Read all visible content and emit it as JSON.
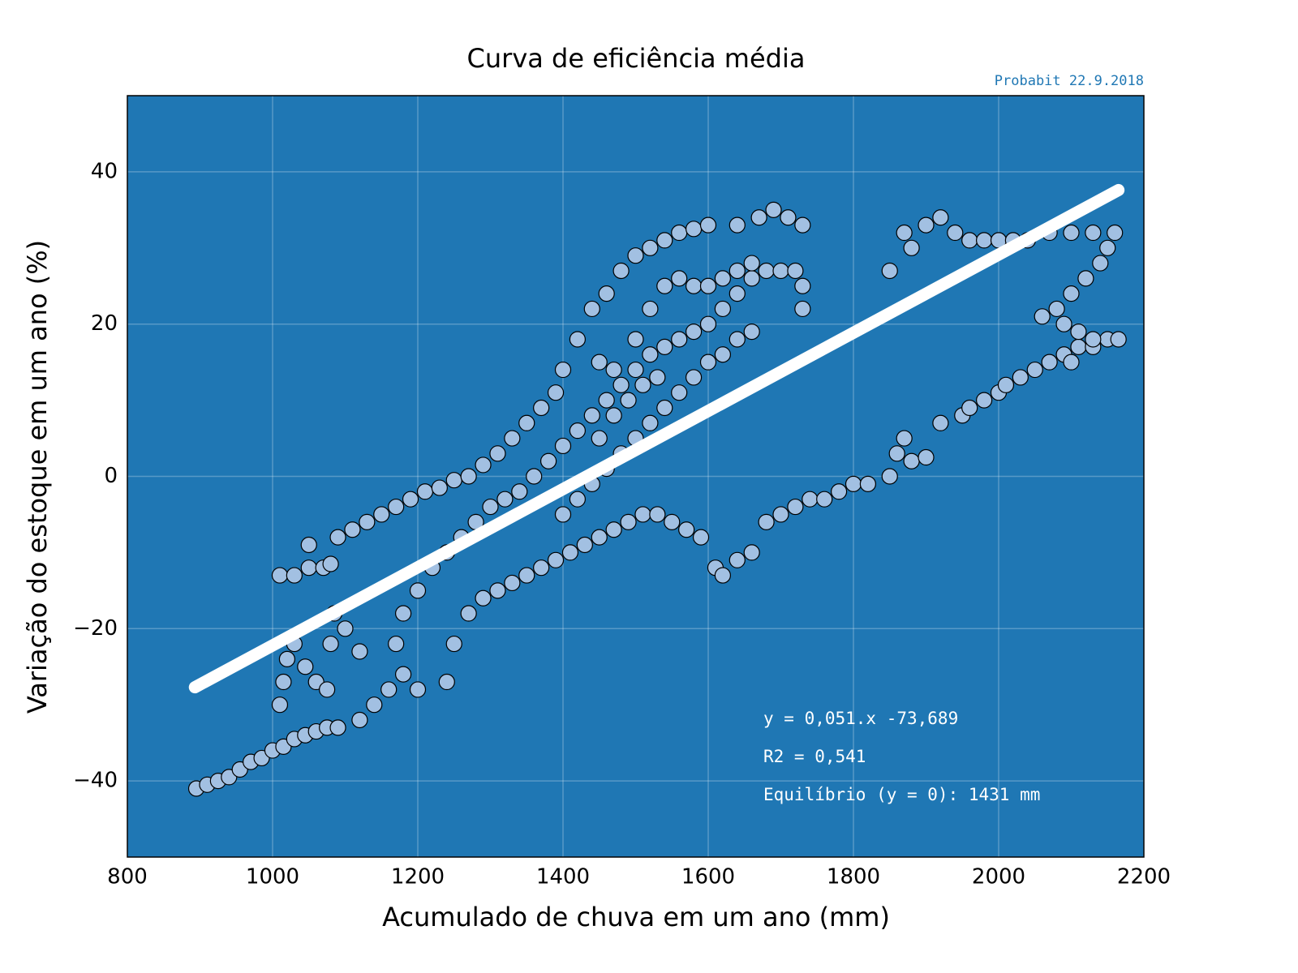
{
  "chart_data": {
    "type": "scatter",
    "title": "Curva de eficiência média",
    "subtitle": "Probabit 22.9.2018",
    "x_label": "Acumulado de chuva em um ano (mm)",
    "y_label": "Variação do estoque em um ano (%)",
    "annotations": [
      "y = 0,051.x -73,689",
      "R2 = 0,541",
      "Equilíbrio (y = 0): 1431 mm"
    ],
    "xlim": [
      800,
      2200
    ],
    "xticks": [
      800,
      1000,
      1200,
      1400,
      1600,
      1800,
      2000,
      2200
    ],
    "ylim": [
      -50,
      50
    ],
    "yticks": [
      {
        "value": -40,
        "label": "−40"
      },
      {
        "value": -20,
        "label": "−20"
      },
      0,
      20,
      40
    ],
    "grid": true,
    "background": "#1f77b4",
    "color": "#a2c0e2",
    "x": [
      895,
      910,
      925,
      940,
      955,
      970,
      985,
      1000,
      1015,
      1030,
      1045,
      1060,
      1075,
      1090,
      1010,
      1015,
      1020,
      1030,
      1045,
      1060,
      1075,
      1080,
      1085,
      1100,
      1120,
      1010,
      1030,
      1050,
      1070,
      1080,
      1050,
      1090,
      1110,
      1130,
      1150,
      1170,
      1190,
      1210,
      1230,
      1250,
      1270,
      1290,
      1310,
      1330,
      1350,
      1370,
      1390,
      1400,
      1420,
      1440,
      1460,
      1480,
      1500,
      1520,
      1540,
      1560,
      1580,
      1600,
      1640,
      1670,
      1690,
      1710,
      1730,
      1120,
      1140,
      1160,
      1180,
      1200,
      1170,
      1180,
      1200,
      1220,
      1240,
      1260,
      1280,
      1300,
      1320,
      1340,
      1360,
      1380,
      1400,
      1420,
      1440,
      1460,
      1480,
      1500,
      1520,
      1540,
      1560,
      1580,
      1600,
      1620,
      1640,
      1660,
      1680,
      1700,
      1720,
      1730,
      1730,
      1240,
      1250,
      1270,
      1290,
      1310,
      1330,
      1350,
      1370,
      1390,
      1410,
      1430,
      1450,
      1470,
      1490,
      1510,
      1530,
      1550,
      1570,
      1590,
      1610,
      1620,
      1640,
      1660,
      1680,
      1700,
      1720,
      1740,
      1760,
      1780,
      1800,
      1820,
      1850,
      1860,
      1870,
      1880,
      1900,
      1920,
      1950,
      1960,
      1980,
      2000,
      2010,
      2030,
      2050,
      2070,
      2090,
      2110,
      2130,
      2150,
      2165,
      1850,
      1870,
      1880,
      1900,
      1920,
      1940,
      1960,
      1980,
      2000,
      2020,
      2040,
      2070,
      2100,
      2130,
      2160,
      2150,
      2140,
      2120,
      2100,
      2080,
      2060,
      2090,
      2110,
      2130,
      2100,
      1400,
      1420,
      1440,
      1460,
      1480,
      1500,
      1520,
      1540,
      1560,
      1580,
      1600,
      1620,
      1640,
      1660,
      1450,
      1470,
      1490,
      1510,
      1530,
      1450,
      1470,
      1500,
      1520,
      1540,
      1560,
      1580,
      1600,
      1620,
      1640,
      1660
    ],
    "values": [
      -41,
      -40.5,
      -40,
      -39.5,
      -38.5,
      -37.5,
      -37,
      -36,
      -35.5,
      -34.5,
      -34,
      -33.5,
      -33,
      -33,
      -30,
      -27,
      -24,
      -22,
      -25,
      -27,
      -28,
      -22,
      -18,
      -20,
      -23,
      -13,
      -13,
      -12,
      -12,
      -11.5,
      -9,
      -8,
      -7,
      -6,
      -5,
      -4,
      -3,
      -2,
      -1.5,
      -0.5,
      0,
      1.5,
      3,
      5,
      7,
      9,
      11,
      14,
      18,
      22,
      24,
      27,
      29,
      30,
      31,
      32,
      32.5,
      33,
      33,
      34,
      35,
      34,
      33,
      -32,
      -30,
      -28,
      -26,
      -28,
      -22,
      -18,
      -15,
      -12,
      -10,
      -8,
      -6,
      -4,
      -3,
      -2,
      0,
      2,
      4,
      6,
      8,
      10,
      12,
      14,
      16,
      17,
      18,
      19,
      20,
      22,
      24,
      26,
      27,
      27,
      27,
      25,
      22,
      -27,
      -22,
      -18,
      -16,
      -15,
      -14,
      -13,
      -12,
      -11,
      -10,
      -9,
      -8,
      -7,
      -6,
      -5,
      -5,
      -6,
      -7,
      -8,
      -12,
      -13,
      -11,
      -10,
      -6,
      -5,
      -4,
      -3,
      -3,
      -2,
      -1,
      -1,
      0,
      3,
      5,
      2,
      2.5,
      7,
      8,
      9,
      10,
      11,
      12,
      13,
      14,
      15,
      16,
      17,
      17,
      18,
      18,
      27,
      32,
      30,
      33,
      34,
      32,
      31,
      31,
      31,
      31,
      31,
      32,
      32,
      32,
      32,
      30,
      28,
      26,
      24,
      22,
      21,
      20,
      19,
      18,
      15,
      -5,
      -3,
      -1,
      1,
      3,
      5,
      7,
      9,
      11,
      13,
      15,
      16,
      18,
      19,
      5,
      8,
      10,
      12,
      13,
      15,
      14,
      18,
      22,
      25,
      26,
      25,
      25,
      26,
      27,
      28
    ],
    "fit_line": {
      "x": [
        893,
        2165
      ],
      "values": [
        -27.7,
        37.6
      ],
      "color": "#ffffff"
    }
  }
}
